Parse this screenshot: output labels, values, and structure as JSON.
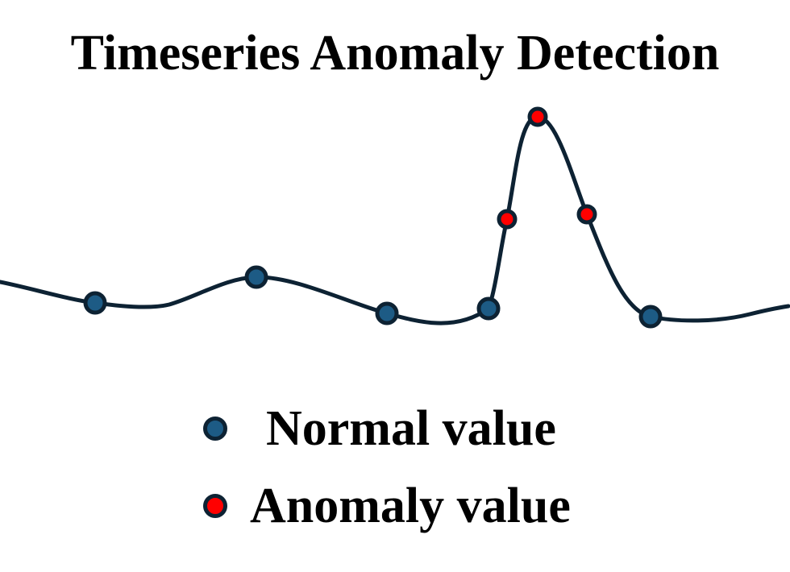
{
  "title": "Timeseries Anomaly Detection",
  "colors": {
    "line": "#0d2233",
    "normal_fill": "#1d5b85",
    "anomaly_fill": "#ff0000"
  },
  "legend": {
    "normal_label": "Normal value",
    "anomaly_label": "Anomaly value"
  },
  "points": [
    {
      "status": "normal"
    },
    {
      "status": "normal"
    },
    {
      "status": "normal"
    },
    {
      "status": "normal"
    },
    {
      "status": "anomaly"
    },
    {
      "status": "anomaly"
    },
    {
      "status": "anomaly"
    },
    {
      "status": "normal"
    }
  ]
}
